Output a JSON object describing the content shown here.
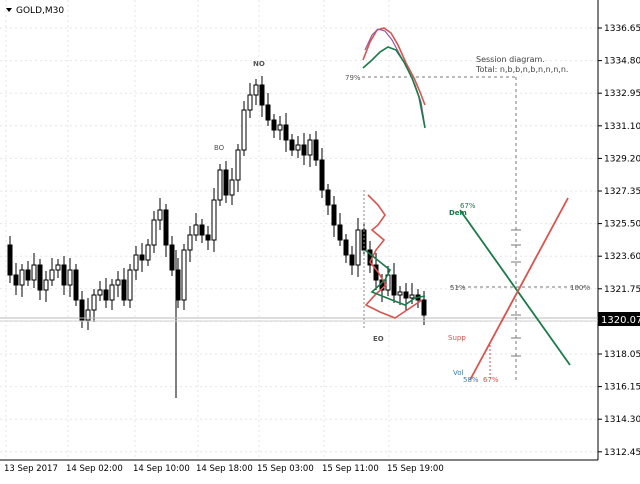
{
  "symbol_label": "GOLD,M30",
  "current_price": "1320.07",
  "price_axis": [
    "1336.65",
    "1334.80",
    "1332.95",
    "1331.10",
    "1329.20",
    "1327.35",
    "1325.50",
    "1323.60",
    "1321.75",
    "1319.90",
    "1318.05",
    "1316.15",
    "1314.30",
    "1312.45"
  ],
  "time_axis": [
    "13 Sep 2017",
    "14 Sep 02:00",
    "14 Sep 10:00",
    "14 Sep 18:00",
    "15 Sep 03:00",
    "15 Sep 11:00",
    "15 Sep 19:00"
  ],
  "annotations": {
    "no": "NO",
    "bo": "BO",
    "eo": "EO",
    "pct_79": "79%",
    "session_title": "Session diagram.",
    "session_total": "Total: n,b,b,n,b,n,n,n,n.",
    "pct_67_top": "67%",
    "dem": "Dem",
    "pct_51": "51%",
    "pct_100": "100%",
    "supp": "Supp",
    "vol": "Vol",
    "pct_58": "58%",
    "pct_67_bottom": "67%"
  },
  "colors": {
    "up_line": "#1a7a4a",
    "down_line": "#d9534f",
    "blue_label": "#3a7ab8",
    "candle": "#000000",
    "price_tag_bg": "#000000"
  },
  "icons": {
    "dropdown": "triangle-down-icon"
  }
}
